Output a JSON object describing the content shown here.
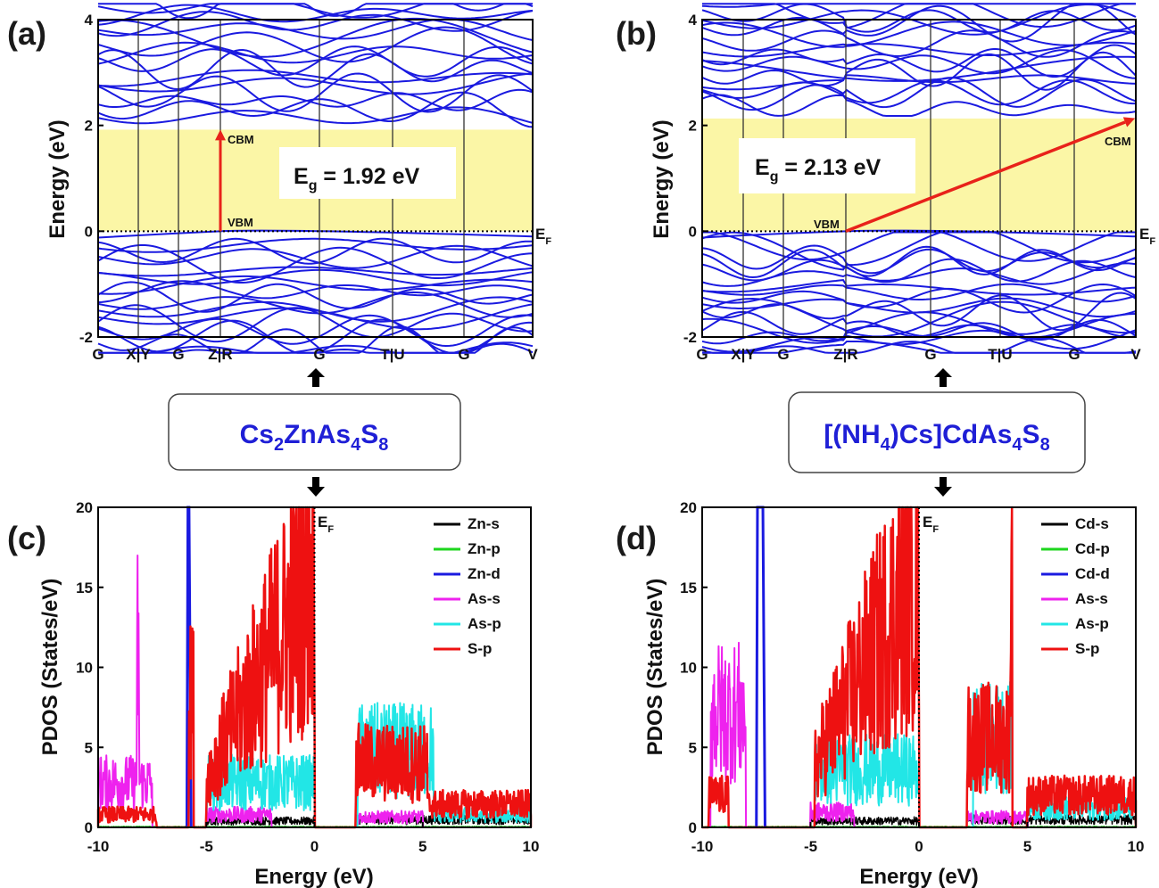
{
  "chart_data": [
    {
      "panel": "(a)",
      "type": "line",
      "ylabel": "Energy (eV)",
      "ylim": [
        -2,
        4
      ],
      "yticks": [
        -2,
        0,
        2,
        4
      ],
      "kpath_labels": [
        "G",
        "X|Y",
        "G",
        "Z|R",
        "G",
        "T|U",
        "G",
        "V"
      ],
      "fermi_label": "E",
      "fermi_sub": "F",
      "cbm_label": "CBM",
      "vbm_label": "VBM",
      "vbm": 0.0,
      "cbm": 1.92,
      "gap_text": "E",
      "gap_sub": "g",
      "gap_value": " = 1.92 eV",
      "gap_type": "direct",
      "band_color": "#1a1ae0",
      "gap_fill": "#fbf6a6",
      "arrow_color": "#e8221a"
    },
    {
      "panel": "(b)",
      "type": "line",
      "ylabel": "Energy (eV)",
      "ylim": [
        -2,
        4
      ],
      "yticks": [
        -2,
        0,
        2,
        4
      ],
      "kpath_labels": [
        "G",
        "X|Y",
        "G",
        "Z|R",
        "G",
        "T|U",
        "G",
        "V"
      ],
      "fermi_label": "E",
      "fermi_sub": "F",
      "cbm_label": "CBM",
      "vbm_label": "VBM",
      "vbm": 0.0,
      "cbm": 2.13,
      "gap_text": "E",
      "gap_sub": "g",
      "gap_value": " = 2.13 eV",
      "gap_type": "indirect",
      "band_color": "#1a1ae0",
      "gap_fill": "#fbf6a6",
      "arrow_color": "#e8221a"
    },
    {
      "panel": "(c)",
      "type": "line",
      "xlabel": "Energy (eV)",
      "ylabel": "PDOS (States/eV)",
      "xlim": [
        -10,
        10
      ],
      "ylim": [
        0,
        20
      ],
      "xticks": [
        -10,
        -5,
        0,
        5,
        10
      ],
      "yticks": [
        0,
        5,
        10,
        15,
        20
      ],
      "fermi_label": "E",
      "fermi_sub": "F",
      "series": [
        {
          "name": "Zn-s",
          "color": "#000000"
        },
        {
          "name": "Zn-p",
          "color": "#1ed61e"
        },
        {
          "name": "Zn-d",
          "color": "#1a1ae0"
        },
        {
          "name": "As-s",
          "color": "#ee22ee"
        },
        {
          "name": "As-p",
          "color": "#22e6e6"
        },
        {
          "name": "S-p",
          "color": "#ee1111"
        }
      ]
    },
    {
      "panel": "(d)",
      "type": "line",
      "xlabel": "Energy (eV)",
      "ylabel": "PDOS (States/eV)",
      "xlim": [
        -10,
        10
      ],
      "ylim": [
        0,
        20
      ],
      "xticks": [
        -10,
        -5,
        0,
        5,
        10
      ],
      "yticks": [
        0,
        5,
        10,
        15,
        20
      ],
      "fermi_label": "E",
      "fermi_sub": "F",
      "series": [
        {
          "name": "Cd-s",
          "color": "#000000"
        },
        {
          "name": "Cd-p",
          "color": "#1ed61e"
        },
        {
          "name": "Cd-d",
          "color": "#1a1ae0"
        },
        {
          "name": "As-s",
          "color": "#ee22ee"
        },
        {
          "name": "As-p",
          "color": "#22e6e6"
        },
        {
          "name": "S-p",
          "color": "#ee1111"
        }
      ]
    }
  ],
  "compounds": [
    {
      "parts": [
        [
          "Cs",
          ""
        ],
        [
          "2",
          "sub"
        ],
        [
          "ZnAs",
          ""
        ],
        [
          "4",
          "sub"
        ],
        [
          "S",
          ""
        ],
        [
          "8",
          "sub"
        ]
      ]
    },
    {
      "parts": [
        [
          "[(NH",
          ""
        ],
        [
          "4",
          "sub"
        ],
        [
          ")Cs]CdAs",
          ""
        ],
        [
          "4",
          "sub"
        ],
        [
          "S",
          ""
        ],
        [
          "8",
          "sub"
        ]
      ]
    }
  ]
}
